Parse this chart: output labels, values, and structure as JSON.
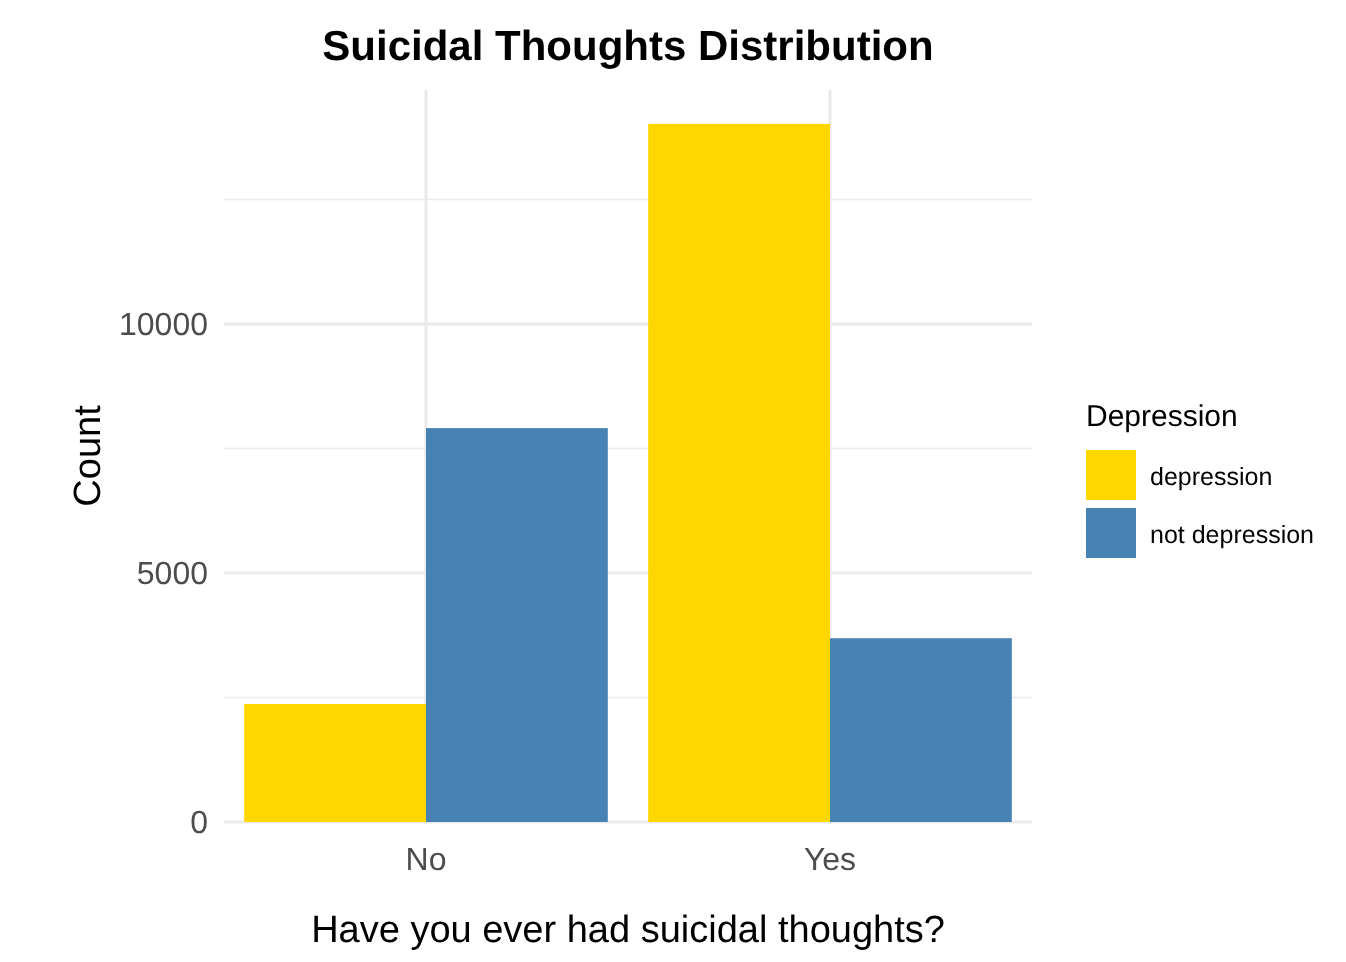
{
  "chart_data": {
    "type": "bar",
    "title": "Suicidal Thoughts Distribution",
    "xlabel": "Have you ever had suicidal thoughts?",
    "ylabel": "Count",
    "legend_title": "Depression",
    "categories": [
      "No",
      "Yes"
    ],
    "series": [
      {
        "name": "depression",
        "color": "#ffd700",
        "values": [
          2370,
          14020
        ]
      },
      {
        "name": "not depression",
        "color": "#4682b4",
        "values": [
          7910,
          3690
        ]
      }
    ],
    "ylim": [
      0,
      14700
    ],
    "yticks": [
      0,
      {
        "value": 2500,
        "label": null
      },
      5000,
      {
        "value": 7500,
        "label": null
      },
      10000,
      {
        "value": 12500,
        "label": null
      }
    ],
    "grid": true,
    "legend": "right"
  }
}
